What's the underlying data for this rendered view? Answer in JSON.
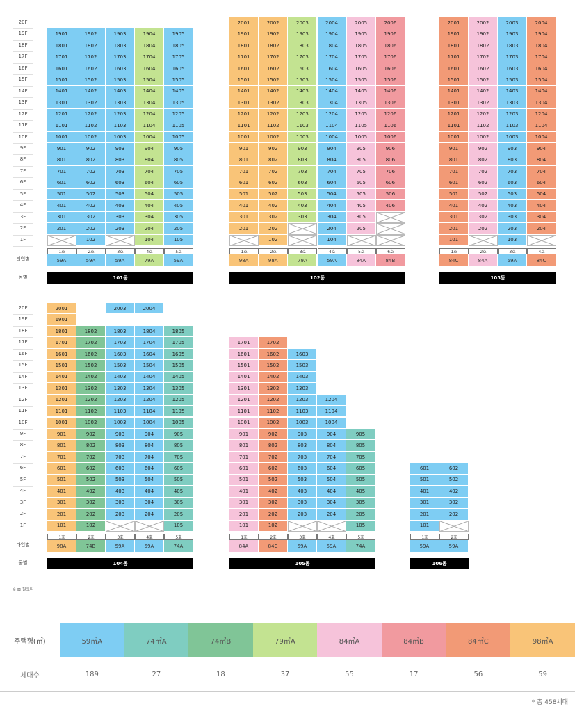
{
  "colors": {
    "59A": "#7ecdf3",
    "74A": "#7fcdc1",
    "74B": "#80c597",
    "79A": "#c3e391",
    "84A": "#f6c3da",
    "84B": "#f19a9f",
    "84C": "#f29a76",
    "98A": "#f9c478"
  },
  "labels": {
    "type_row": "타입별",
    "dong_row": "동별",
    "pilotis_note": "※ ⊠ 필로티",
    "unit_type_header": "주택형(㎡)",
    "households_header": "세대수",
    "total_note": "* 총 458세대"
  },
  "summary": {
    "types": [
      "59㎡A",
      "74㎡A",
      "74㎡B",
      "79㎡A",
      "84㎡A",
      "84㎡B",
      "84㎡C",
      "98㎡A"
    ],
    "keys": [
      "59A",
      "74A",
      "74B",
      "79A",
      "84A",
      "84B",
      "84C",
      "98A"
    ],
    "counts": [
      "189",
      "27",
      "18",
      "37",
      "55",
      "17",
      "56",
      "59"
    ]
  },
  "buildings": [
    {
      "dong": "101동",
      "top_floor": 19,
      "ho": [
        "1호",
        "2호",
        "3호",
        "4호",
        "5호"
      ],
      "types": [
        "59A",
        "59A",
        "59A",
        "79A",
        "59A"
      ],
      "colors": [
        "59A",
        "59A",
        "59A",
        "79A",
        "59A"
      ],
      "floors_top": [
        19,
        19,
        19,
        19,
        19
      ],
      "pilotis": [
        [
          1
        ],
        [],
        [
          1
        ],
        [],
        []
      ]
    },
    {
      "dong": "102동",
      "top_floor": 20,
      "ho": [
        "1호",
        "2호",
        "3호",
        "4호",
        "5호",
        "6호"
      ],
      "types": [
        "98A",
        "98A",
        "79A",
        "59A",
        "84A",
        "84B"
      ],
      "colors": [
        "98A",
        "98A",
        "79A",
        "59A",
        "84A",
        "84B"
      ],
      "floors_top": [
        20,
        20,
        20,
        20,
        20,
        20
      ],
      "pilotis": [
        [
          1
        ],
        [],
        [
          1,
          2
        ],
        [],
        [
          1
        ],
        [
          1,
          2,
          3
        ]
      ]
    },
    {
      "dong": "103동",
      "top_floor": 20,
      "ho": [
        "1호",
        "2호",
        "3호",
        "4호"
      ],
      "types": [
        "84C",
        "84A",
        "59A",
        "84C"
      ],
      "colors": [
        "84C",
        "84A",
        "59A",
        "84C"
      ],
      "floors_top": [
        20,
        20,
        20,
        20
      ],
      "pilotis": [
        [],
        [
          1
        ],
        [],
        [
          1
        ]
      ]
    },
    {
      "dong": "104동",
      "top_floor": 20,
      "ho": [
        "1호",
        "2호",
        "3호",
        "4호",
        "5호"
      ],
      "types": [
        "98A",
        "74B",
        "59A",
        "59A",
        "74A"
      ],
      "colors": [
        "98A",
        "74B",
        "59A",
        "59A",
        "74A"
      ],
      "floors_top": [
        20,
        18,
        20,
        20,
        18
      ],
      "skip": [
        [],
        [],
        [
          19
        ],
        [
          19
        ],
        []
      ],
      "pilotis": [
        [],
        [],
        [
          1
        ],
        [
          1
        ],
        []
      ]
    },
    {
      "dong": "105동",
      "top_floor": 17,
      "ho": [
        "1호",
        "2호",
        "3호",
        "4호",
        "5호"
      ],
      "types": [
        "84A",
        "84C",
        "59A",
        "59A",
        "74A"
      ],
      "colors": [
        "84A",
        "84C",
        "59A",
        "59A",
        "74A"
      ],
      "floors_top": [
        17,
        17,
        16,
        12,
        9
      ],
      "pilotis": [
        [],
        [],
        [
          1
        ],
        [
          1
        ],
        []
      ]
    },
    {
      "dong": "106동",
      "top_floor": 6,
      "ho": [
        "1호",
        "2호"
      ],
      "types": [
        "59A",
        "59A"
      ],
      "colors": [
        "59A",
        "59A"
      ],
      "floors_top": [
        6,
        6
      ],
      "pilotis": [
        [],
        [
          1
        ]
      ]
    }
  ],
  "floor_labels": [
    "20F",
    "19F",
    "18F",
    "17F",
    "16F",
    "15F",
    "14F",
    "13F",
    "12F",
    "11F",
    "10F",
    "9F",
    "8F",
    "7F",
    "6F",
    "5F",
    "4F",
    "3F",
    "2F",
    "1F"
  ]
}
